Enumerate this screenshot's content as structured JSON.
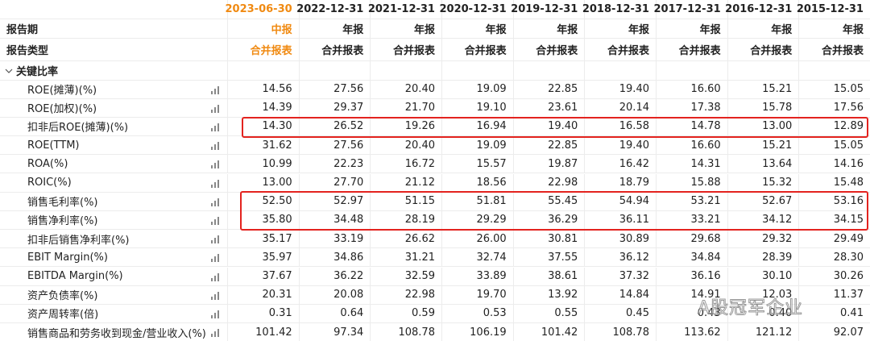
{
  "table": {
    "header": {
      "periods": [
        "2023-06-30",
        "2022-12-31",
        "2021-12-31",
        "2020-12-31",
        "2019-12-31",
        "2018-12-31",
        "2017-12-31",
        "2016-12-31",
        "2015-12-31"
      ],
      "period_label": "报告期",
      "report_periods": [
        "中报",
        "年报",
        "年报",
        "年报",
        "年报",
        "年报",
        "年报",
        "年报",
        "年报"
      ],
      "type_label": "报告类型",
      "report_types": [
        "合并报表",
        "合并报表",
        "合并报表",
        "合并报表",
        "合并报表",
        "合并报表",
        "合并报表",
        "合并报表",
        "合并报表"
      ]
    },
    "section": "关键比率",
    "rows": [
      {
        "label": "ROE(摊薄)(%)",
        "values": [
          "14.56",
          "27.56",
          "20.40",
          "19.09",
          "22.85",
          "19.40",
          "16.60",
          "15.21",
          "15.05"
        ]
      },
      {
        "label": "ROE(加权)(%)",
        "values": [
          "14.39",
          "29.37",
          "21.70",
          "19.10",
          "23.61",
          "20.14",
          "17.38",
          "15.78",
          "17.56"
        ]
      },
      {
        "label": "扣非后ROE(摊薄)(%)",
        "values": [
          "14.30",
          "26.52",
          "19.26",
          "16.94",
          "19.40",
          "16.58",
          "14.78",
          "13.00",
          "12.89"
        ]
      },
      {
        "label": "ROE(TTM)",
        "values": [
          "31.62",
          "27.56",
          "20.40",
          "19.09",
          "22.85",
          "19.40",
          "16.60",
          "15.21",
          "15.05"
        ]
      },
      {
        "label": "ROA(%)",
        "values": [
          "10.99",
          "22.23",
          "16.72",
          "15.57",
          "19.87",
          "16.42",
          "14.31",
          "13.64",
          "14.16"
        ]
      },
      {
        "label": "ROIC(%)",
        "values": [
          "13.00",
          "27.70",
          "21.12",
          "18.56",
          "22.98",
          "18.79",
          "15.88",
          "15.32",
          "15.48"
        ]
      },
      {
        "label": "销售毛利率(%)",
        "values": [
          "52.50",
          "52.97",
          "51.15",
          "51.81",
          "55.45",
          "54.94",
          "53.21",
          "52.67",
          "53.16"
        ]
      },
      {
        "label": "销售净利率(%)",
        "values": [
          "35.80",
          "34.48",
          "28.19",
          "29.29",
          "36.29",
          "36.11",
          "33.21",
          "34.12",
          "34.15"
        ]
      },
      {
        "label": "扣非后销售净利率(%)",
        "values": [
          "35.17",
          "33.19",
          "26.62",
          "26.00",
          "30.81",
          "30.89",
          "29.68",
          "29.32",
          "29.49"
        ]
      },
      {
        "label": "EBIT Margin(%)",
        "values": [
          "35.97",
          "34.86",
          "31.21",
          "32.74",
          "37.55",
          "36.12",
          "34.84",
          "28.39",
          "28.30"
        ]
      },
      {
        "label": "EBITDA Margin(%)",
        "values": [
          "37.67",
          "36.22",
          "32.59",
          "33.89",
          "38.61",
          "37.32",
          "36.16",
          "30.10",
          "30.26"
        ]
      },
      {
        "label": "资产负债率(%)",
        "values": [
          "20.31",
          "20.08",
          "22.98",
          "19.70",
          "13.92",
          "14.84",
          "14.91",
          "12.03",
          "11.37"
        ]
      },
      {
        "label": "资产周转率(倍)",
        "values": [
          "0.31",
          "0.64",
          "0.59",
          "0.53",
          "0.55",
          "0.45",
          "0.43",
          "0.40",
          "0.41"
        ]
      },
      {
        "label": "销售商品和劳务收到现金/营业收入(%)",
        "values": [
          "101.42",
          "97.34",
          "108.78",
          "106.19",
          "101.42",
          "108.78",
          "113.62",
          "121.12",
          "92.07"
        ]
      }
    ]
  },
  "watermark": "A股冠军企业"
}
